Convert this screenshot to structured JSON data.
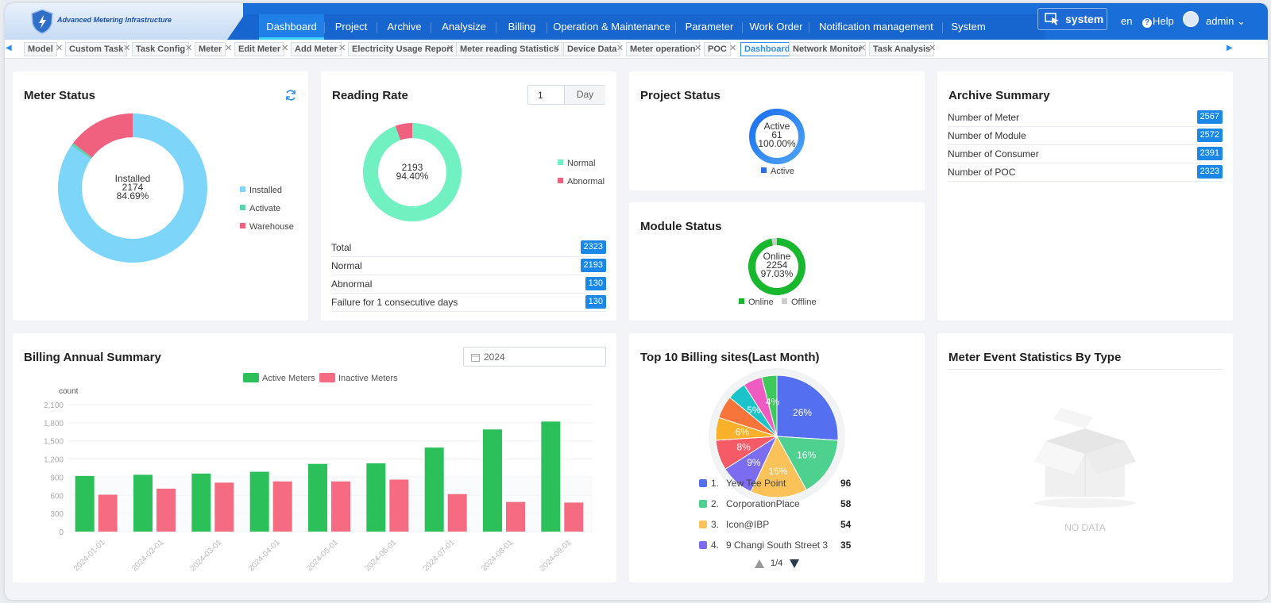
{
  "app": {
    "title": "Advanced Metering Infrastructure"
  },
  "nav": {
    "items": [
      "Dashboard",
      "Project",
      "Archive",
      "Analysize",
      "Billing",
      "Operation & Maintenance",
      "Parameter",
      "Work Order",
      "Notification management",
      "System"
    ],
    "active": "Dashboard",
    "system_button": "system",
    "lang": "en",
    "help": "Help",
    "user": "admin"
  },
  "tabs": [
    "Model",
    "Custom Task",
    "Task Config",
    "Meter",
    "Edit Meter",
    "Add Meter",
    "Electricity Usage Report",
    "Meter reading Statistics",
    "Device Data",
    "Meter operation",
    "POC",
    "Dashboard",
    "Network Monitor",
    "Task Analysis"
  ],
  "active_tab": "Dashboard",
  "meter_status": {
    "title": "Meter Status",
    "center": {
      "label": "Installed",
      "value": "2174",
      "percent": "84.69%"
    },
    "legend": [
      {
        "name": "Installed",
        "color": "#7dd6f9"
      },
      {
        "name": "Activate",
        "color": "#5cd3ad"
      },
      {
        "name": "Warehouse",
        "color": "#f0607f"
      }
    ],
    "share": {
      "Installed": 84.69,
      "Activate": 0.6,
      "Warehouse": 14.71
    }
  },
  "reading_rate": {
    "title": "Reading Rate",
    "day_input": "1",
    "day_unit": "Day",
    "center": {
      "value": "2193",
      "percent": "94.40%"
    },
    "legend": [
      {
        "name": "Normal",
        "color": "#71f0c1"
      },
      {
        "name": "Abnormal",
        "color": "#f0607f"
      }
    ],
    "share": {
      "Normal": 94.4,
      "Abnormal": 5.6
    },
    "rows": [
      {
        "label": "Total",
        "value": "2323"
      },
      {
        "label": "Normal",
        "value": "2193"
      },
      {
        "label": "Abnormal",
        "value": "130"
      },
      {
        "label": "Failure for 1 consecutive days",
        "value": "130"
      }
    ]
  },
  "project_status": {
    "title": "Project Status",
    "center": {
      "label": "Active",
      "value": "61",
      "percent": "100.00%"
    },
    "legend": [
      {
        "name": "Active",
        "color": "#2b6ee6"
      }
    ]
  },
  "module_status": {
    "title": "Module Status",
    "center": {
      "label": "Online",
      "value": "2254",
      "percent": "97.03%"
    },
    "legend": [
      {
        "name": "Online",
        "color": "#18b72e"
      },
      {
        "name": "Offline",
        "color": "#cccccc"
      }
    ],
    "share": {
      "Online": 97.03,
      "Offline": 2.97
    }
  },
  "archive_summary": {
    "title": "Archive Summary",
    "rows": [
      {
        "label": "Number of Meter",
        "value": "2567"
      },
      {
        "label": "Number of Module",
        "value": "2572"
      },
      {
        "label": "Number of Consumer",
        "value": "2391"
      },
      {
        "label": "Number of POC",
        "value": "2323"
      }
    ]
  },
  "billing": {
    "title": "Billing Annual Summary",
    "year": "2024",
    "chart_data": {
      "type": "bar",
      "title": "Billing Annual Summary",
      "ylabel": "count",
      "ylim": [
        0,
        2100
      ],
      "yticks": [
        "0",
        "300",
        "600",
        "900",
        "1,200",
        "1,500",
        "1,800",
        "2,100"
      ],
      "categories": [
        "2024-01-01",
        "2024-02-01",
        "2024-03-01",
        "2024-04-01",
        "2024-05-01",
        "2024-06-01",
        "2024-07-01",
        "2024-08-01",
        "2024-09-01"
      ],
      "series": [
        {
          "name": "Active Meters",
          "color": "#2cc05a",
          "values": [
            920,
            940,
            960,
            990,
            1120,
            1130,
            1390,
            1690,
            1820
          ]
        },
        {
          "name": "Inactive Meters",
          "color": "#f56b82",
          "values": [
            610,
            710,
            810,
            830,
            830,
            860,
            620,
            490,
            480
          ]
        }
      ]
    }
  },
  "top10": {
    "title": "Top 10 Billing sites(Last Month)",
    "chart_data": {
      "type": "pie",
      "slices": [
        {
          "label": "26%",
          "value": 26,
          "color": "#5470f0"
        },
        {
          "label": "16%",
          "value": 16,
          "color": "#4ed08e"
        },
        {
          "label": "15%",
          "value": 15,
          "color": "#fbc25a"
        },
        {
          "label": "9%",
          "value": 9,
          "color": "#7b6cf0"
        },
        {
          "label": "8%",
          "value": 8,
          "color": "#f45b67"
        },
        {
          "label": "6%",
          "value": 6,
          "color": "#f9b12a"
        },
        {
          "label": "",
          "value": 6,
          "color": "#f7743a"
        },
        {
          "label": "5%",
          "value": 5,
          "color": "#1bc4c8"
        },
        {
          "label": "",
          "value": 5,
          "color": "#ee5cc2"
        },
        {
          "label": "4%",
          "value": 4,
          "color": "#3fc95a"
        }
      ]
    },
    "list": [
      {
        "rank": "1.",
        "name": "Yew Tee Point",
        "value": "96",
        "color": "#5470f0"
      },
      {
        "rank": "2.",
        "name": "CorporationPlace",
        "value": "58",
        "color": "#4ed08e"
      },
      {
        "rank": "3.",
        "name": "Icon@IBP",
        "value": "54",
        "color": "#fbc25a"
      },
      {
        "rank": "4.",
        "name": "9 Changi South Street 3",
        "value": "35",
        "color": "#7b6cf0"
      }
    ],
    "page": "1/4"
  },
  "meter_event": {
    "title": "Meter Event Statistics By Type",
    "empty": "NO DATA"
  }
}
